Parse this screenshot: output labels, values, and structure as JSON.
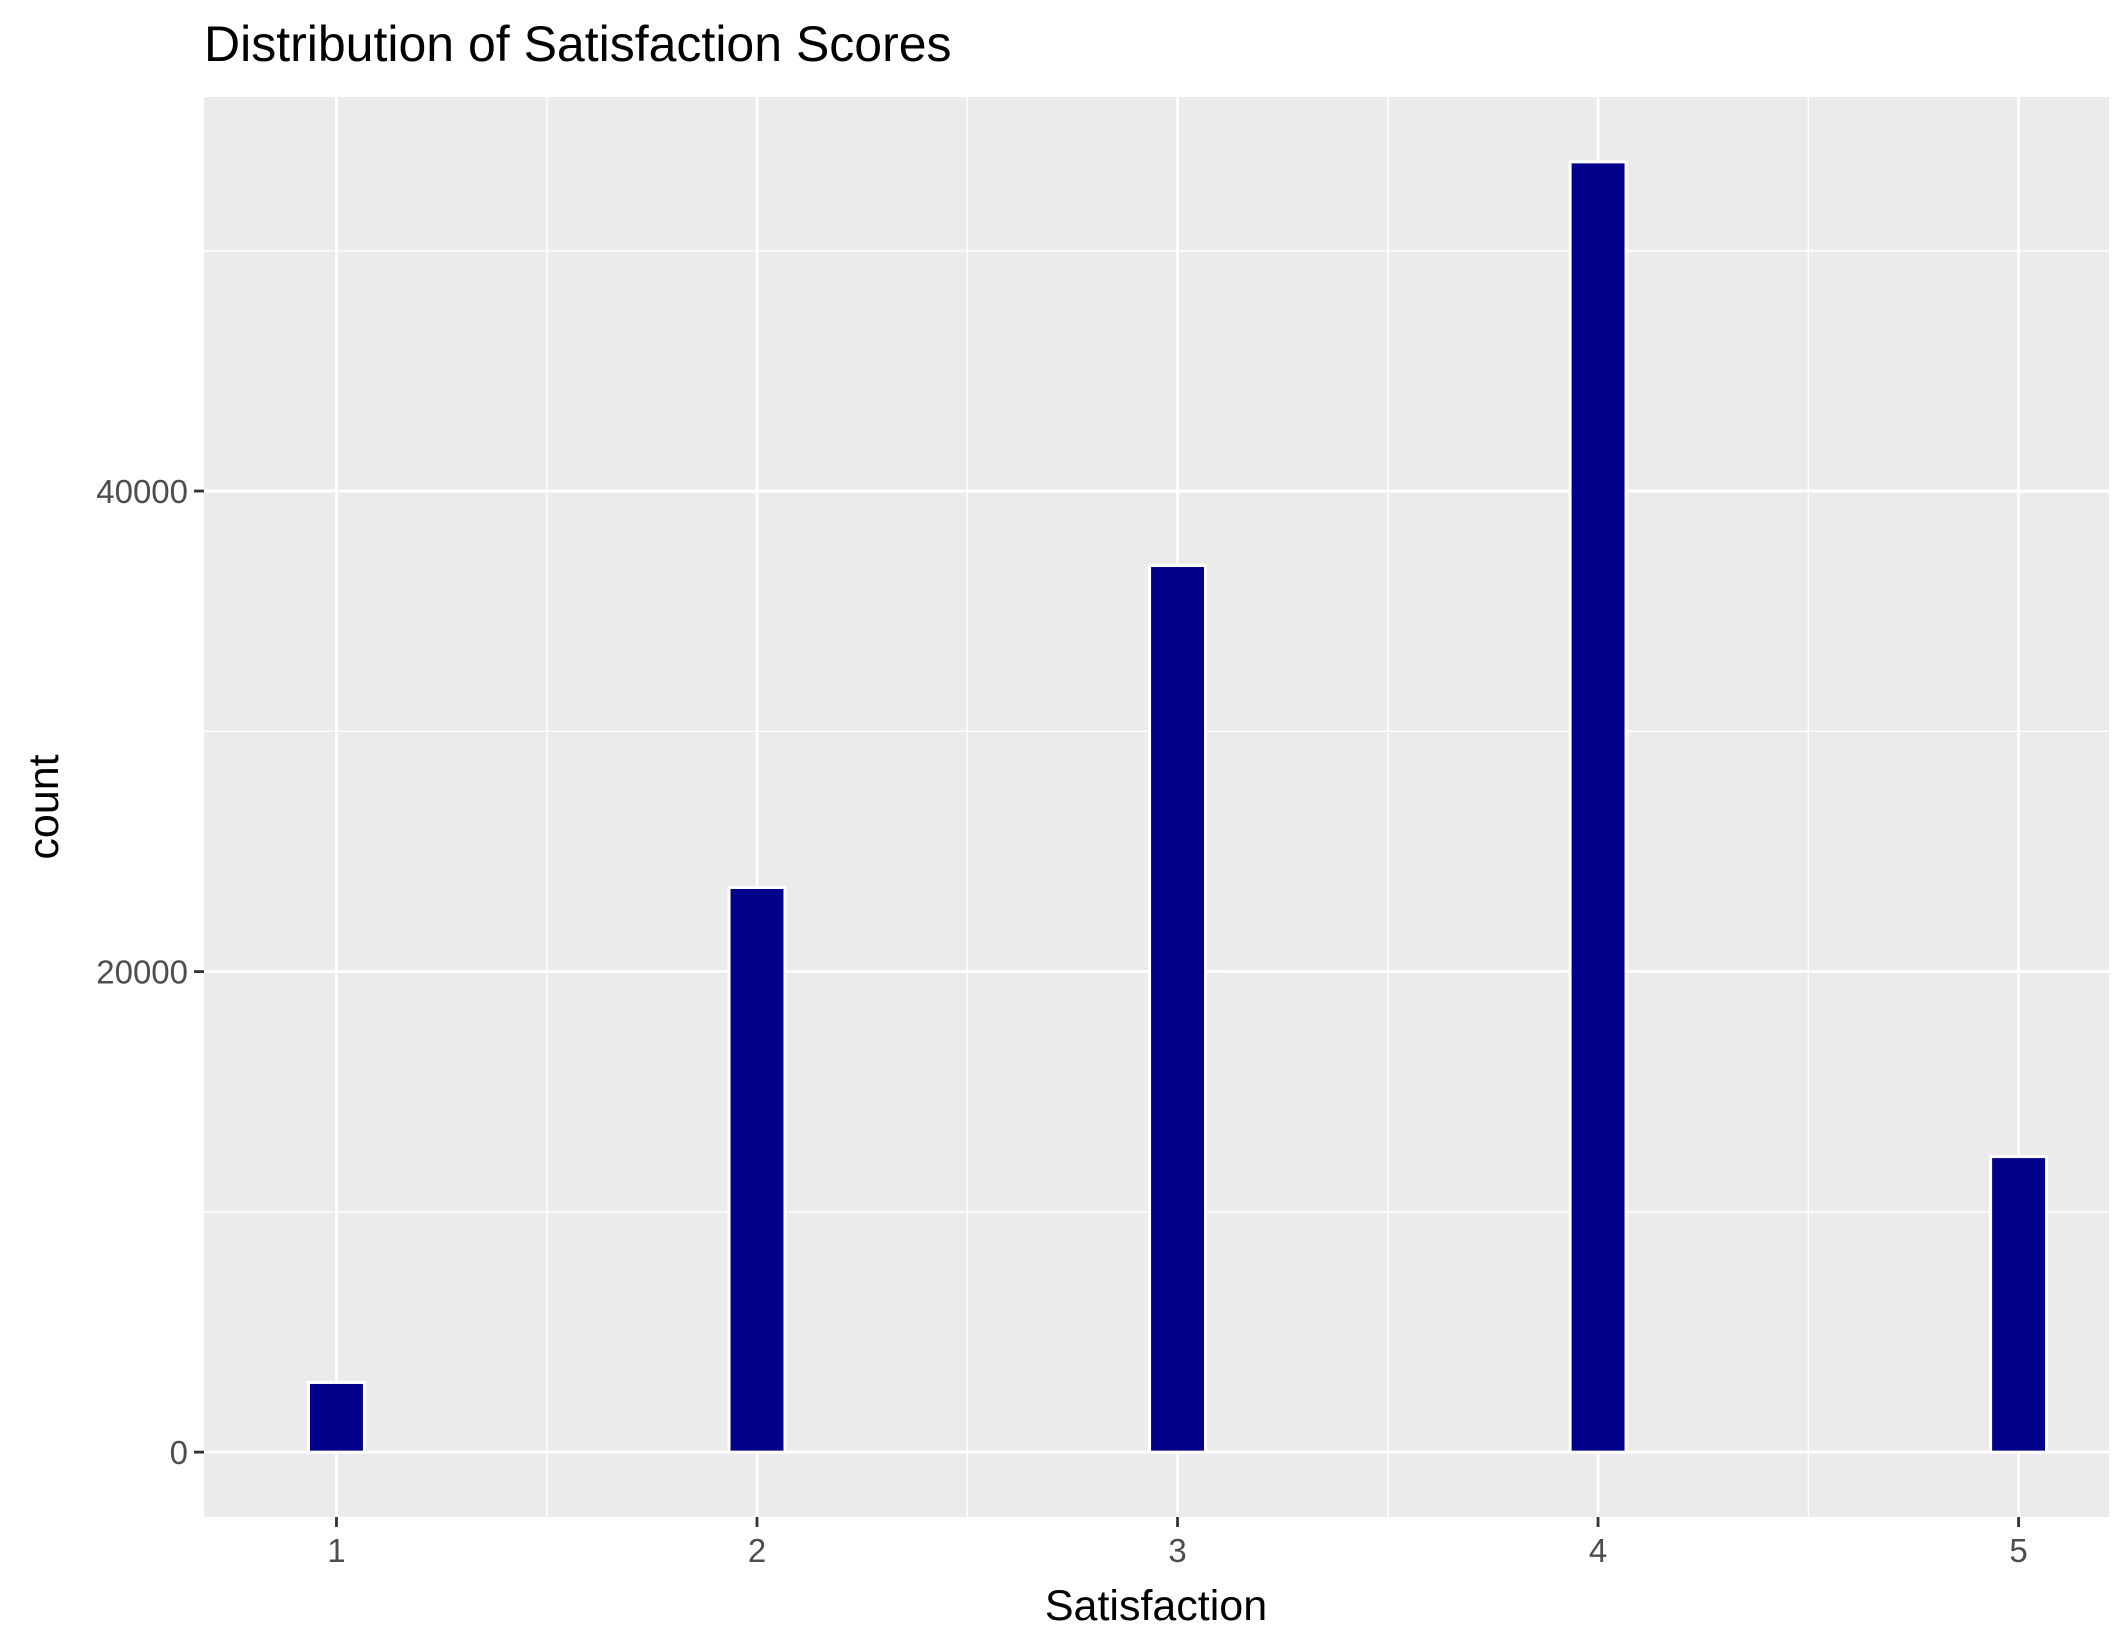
{
  "chart_data": {
    "type": "bar",
    "title": "Distribution of Satisfaction Scores",
    "xlabel": "Satisfaction",
    "ylabel": "count",
    "x": [
      1,
      2,
      3,
      4,
      5
    ],
    "values": [
      2900,
      23500,
      36900,
      53700,
      12300
    ],
    "xlim": [
      0.685,
      5.215
    ],
    "ylim": [
      -2700,
      56400
    ],
    "x_ticks": [
      1,
      2,
      3,
      4,
      5
    ],
    "x_tick_labels": [
      "1",
      "2",
      "3",
      "4",
      "5"
    ],
    "y_ticks": [
      0,
      20000,
      40000
    ],
    "y_tick_labels": [
      "0",
      "20000",
      "40000"
    ],
    "bar_width": 0.133,
    "grid": true,
    "legend": "none",
    "colors": {
      "bar_fill": "#00008B",
      "bar_outline": "#FFFFFF",
      "panel_background": "#EBEBEB",
      "grid": "#FFFFFF",
      "text": "#000000",
      "tick_text": "#4D4D4D",
      "tick_mark": "#333333"
    }
  }
}
